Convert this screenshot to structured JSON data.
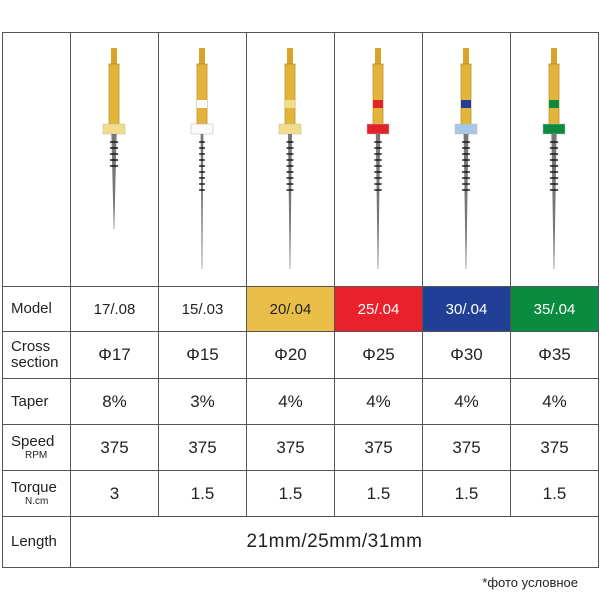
{
  "table": {
    "rows": [
      {
        "label": "Model",
        "cells": [
          "17/.08",
          "15/.03",
          "20/.04",
          "25/.04",
          "30/.04",
          "35/.04"
        ]
      },
      {
        "label": [
          "Cross",
          "section"
        ],
        "cells": [
          "Φ17",
          "Φ15",
          "Φ20",
          "Φ25",
          "Φ30",
          "Φ35"
        ]
      },
      {
        "label": "Taper",
        "cells": [
          "8%",
          "3%",
          "4%",
          "4%",
          "4%",
          "4%"
        ]
      },
      {
        "label": "Speed",
        "sublabel": "RPM",
        "cells": [
          "375",
          "375",
          "375",
          "375",
          "375",
          "375"
        ]
      },
      {
        "label": "Torque",
        "sublabel": "N.cm",
        "cells": [
          "3",
          "1.5",
          "1.5",
          "1.5",
          "1.5",
          "1.5"
        ]
      },
      {
        "label": "Length",
        "cells": [
          "21mm/25mm/31mm"
        ]
      }
    ]
  },
  "footnote": "*фото условное"
}
